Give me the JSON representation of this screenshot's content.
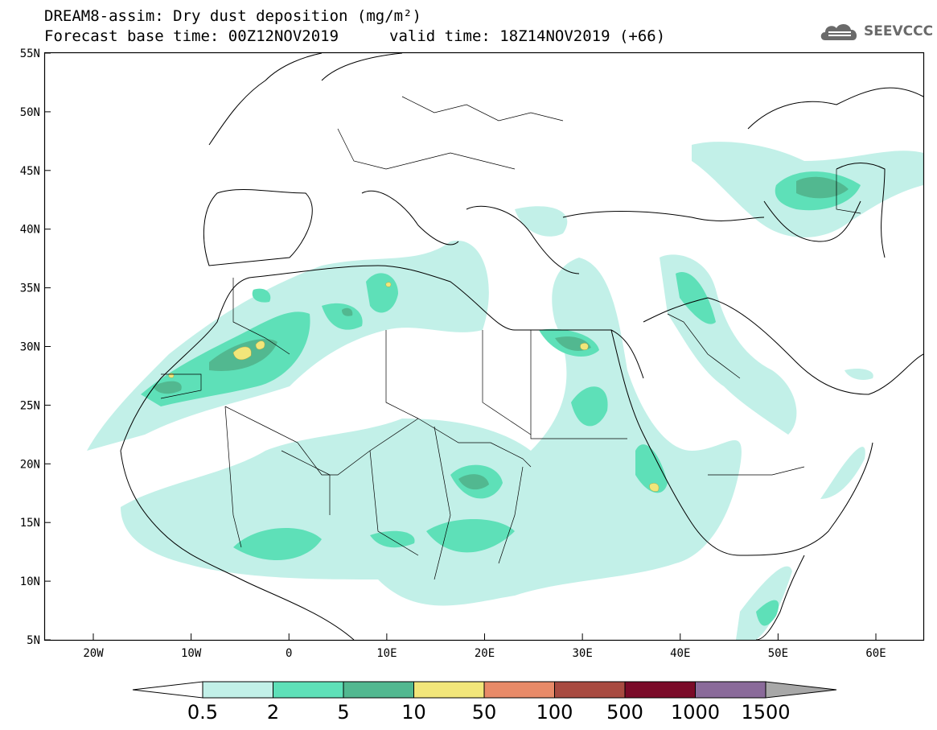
{
  "header": {
    "title": "DREAM8-assim: Dry dust deposition (mg/m²)",
    "base_time": "Forecast base time: 00Z12NOV2019",
    "valid_time": "valid time: 18Z14NOV2019 (+66)",
    "logo_text": "SEEVCCC",
    "logo_icon": "cloud-icon"
  },
  "map": {
    "lat_labels": [
      "55N",
      "50N",
      "45N",
      "40N",
      "35N",
      "30N",
      "25N",
      "20N",
      "15N",
      "10N",
      "5N"
    ],
    "lon_labels": [
      "20W",
      "10W",
      "0",
      "10E",
      "20E",
      "30E",
      "40E",
      "50E",
      "60E"
    ],
    "frame_color": "#000000"
  },
  "colorbar": {
    "colors": [
      "#c2f0e8",
      "#5ee0b8",
      "#52b890",
      "#f2e67a",
      "#e88a68",
      "#a84a40",
      "#7a0a28",
      "#8a6a9a",
      "#a8a8a8"
    ],
    "labels": [
      "0.5",
      "2",
      "5",
      "10",
      "50",
      "100",
      "500",
      "1000",
      "1500"
    ]
  }
}
